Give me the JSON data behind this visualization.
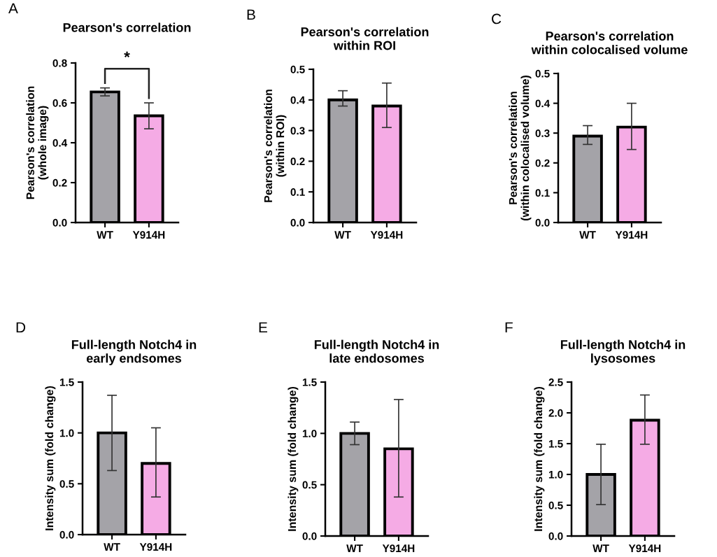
{
  "chart_data": [
    {
      "type": "bar",
      "title": "Pearson's correlation",
      "ylabel": "Pearson's correlation\n(whole image)",
      "categories": [
        "WT",
        "Y914H"
      ],
      "values": [
        0.655,
        0.535
      ],
      "colors": [
        "#a4a3a8",
        "#f5abe5"
      ],
      "errors": [
        [
          0.635,
          0.675
        ],
        [
          0.47,
          0.6
        ]
      ],
      "ylim": [
        0.0,
        0.8
      ],
      "yticks": [
        {
          "value": 0,
          "label": "0.0"
        },
        0.2,
        0.4,
        0.6,
        0.8
      ],
      "grid": false,
      "annotations": [
        "A",
        "*"
      ]
    },
    {
      "type": "bar",
      "title": "Pearson's correlation\nwithin ROI",
      "ylabel": "Pearson's correlation\n(within ROI)",
      "categories": [
        "WT",
        "Y914H"
      ],
      "values": [
        0.4,
        0.38
      ],
      "colors": [
        "#a4a3a8",
        "#f5abe5"
      ],
      "errors": [
        [
          0.38,
          0.43
        ],
        [
          0.31,
          0.455
        ]
      ],
      "ylim": [
        0.0,
        0.5
      ],
      "grid": false,
      "annotations": [
        "B"
      ],
      "yticks": [
        {
          "value": 0,
          "label": "0.0"
        },
        0.1,
        0.2,
        0.3,
        0.4,
        0.5
      ]
    },
    {
      "type": "bar",
      "title": "Pearson's correlation\nwithin colocalised volume",
      "ylabel": "Pearson's correlation\n(within colocalised volume)",
      "categories": [
        "WT",
        "Y914H"
      ],
      "values": [
        0.29,
        0.32
      ],
      "colors": [
        "#a4a3a8",
        "#f5abe5"
      ],
      "errors": [
        [
          0.262,
          0.325
        ],
        [
          0.245,
          0.4
        ]
      ],
      "ylim": [
        0.0,
        0.5
      ],
      "yticks": [
        {
          "value": 0,
          "label": "0.0"
        },
        0.1,
        0.2,
        0.3,
        0.4,
        0.5
      ],
      "grid": false,
      "annotations": [
        "C"
      ]
    },
    {
      "type": "bar",
      "title": "Full-length Notch4 in\nearly endsomes",
      "ylabel": "Intensity sum (fold change)",
      "categories": [
        "WT",
        "Y914H"
      ],
      "values": [
        1.0,
        0.7
      ],
      "colors": [
        "#a4a3a8",
        "#f5abe5"
      ],
      "errors": [
        [
          0.63,
          1.37
        ],
        [
          0.37,
          1.05
        ]
      ],
      "ylim": [
        0.0,
        1.5
      ],
      "yticks": [
        {
          "value": 0,
          "label": "0.0"
        },
        0.5,
        {
          "value": 1,
          "label": "1.0"
        },
        1.5
      ],
      "grid": false,
      "annotations": [
        "D"
      ]
    },
    {
      "type": "bar",
      "title": "Full-length Notch4 in\nlate endosomes",
      "ylabel": "Intensity sum (fold change)",
      "categories": [
        "WT",
        "Y914H"
      ],
      "values": [
        1.0,
        0.85
      ],
      "colors": [
        "#a4a3a8",
        "#f5abe5"
      ],
      "errors": [
        [
          0.89,
          1.11
        ],
        [
          0.38,
          1.33
        ]
      ],
      "ylim": [
        0.0,
        1.5
      ],
      "yticks": [
        {
          "value": 0,
          "label": "0.0"
        },
        0.5,
        {
          "value": 1,
          "label": "1.0"
        },
        1.5
      ],
      "grid": false,
      "annotations": [
        "E"
      ]
    },
    {
      "type": "bar",
      "title": "Full-length Notch4 in\nlysosomes",
      "ylabel": "Intensity sum (fold change)",
      "categories": [
        "WT",
        "Y914H"
      ],
      "values": [
        1.0,
        1.88
      ],
      "colors": [
        "#a4a3a8",
        "#f5abe5"
      ],
      "errors": [
        [
          0.51,
          1.49
        ],
        [
          1.49,
          2.29
        ]
      ],
      "ylim": [
        0.0,
        2.5
      ],
      "yticks": [
        {
          "value": 0,
          "label": "0.0"
        },
        0.5,
        {
          "value": 1,
          "label": "1.0"
        },
        1.5,
        {
          "value": 2,
          "label": "2.0"
        },
        2.5
      ],
      "grid": false,
      "annotations": [
        "F"
      ]
    }
  ]
}
